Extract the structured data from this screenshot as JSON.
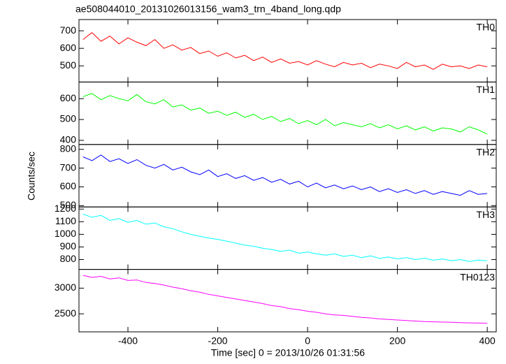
{
  "chart_data": {
    "type": "line",
    "title": "ae508044010_20131026013156_wam3_trn_4band_long.qdp",
    "xlabel": "Time [sec] 0 = 2013/10/26 01:31:56",
    "ylabel": "Counts/sec",
    "xlim": [
      -509,
      420
    ],
    "xticks": [
      -400,
      -200,
      0,
      200,
      400
    ],
    "x": [
      -500,
      -480,
      -460,
      -440,
      -420,
      -400,
      -380,
      -360,
      -340,
      -320,
      -300,
      -280,
      -260,
      -240,
      -220,
      -200,
      -180,
      -160,
      -140,
      -120,
      -100,
      -80,
      -60,
      -40,
      -20,
      0,
      20,
      40,
      60,
      80,
      100,
      120,
      140,
      160,
      180,
      200,
      220,
      240,
      260,
      280,
      300,
      320,
      340,
      360,
      380,
      400
    ],
    "series": [
      {
        "name": "TH0",
        "color": "#ff0000",
        "ylim": [
          408,
          764
        ],
        "yticks": [
          500,
          600,
          700
        ],
        "values": [
          650,
          690,
          640,
          670,
          625,
          660,
          635,
          615,
          650,
          600,
          620,
          590,
          605,
          570,
          585,
          555,
          575,
          545,
          560,
          530,
          550,
          520,
          540,
          515,
          525,
          505,
          530,
          510,
          495,
          520,
          505,
          515,
          490,
          510,
          500,
          485,
          520,
          495,
          505,
          480,
          510,
          495,
          500,
          485,
          505,
          495
        ]
      },
      {
        "name": "TH1",
        "color": "#00ff00",
        "ylim": [
          380,
          680
        ],
        "yticks": [
          400,
          500,
          600
        ],
        "values": [
          610,
          625,
          595,
          615,
          600,
          590,
          620,
          585,
          575,
          595,
          560,
          570,
          545,
          555,
          530,
          540,
          520,
          535,
          510,
          525,
          500,
          515,
          490,
          505,
          480,
          495,
          475,
          500,
          470,
          485,
          475,
          465,
          480,
          460,
          475,
          455,
          470,
          450,
          465,
          445,
          460,
          455,
          440,
          465,
          450,
          430
        ]
      },
      {
        "name": "TH2",
        "color": "#0000ff",
        "ylim": [
          493,
          826
        ],
        "yticks": [
          500,
          600,
          700,
          800
        ],
        "values": [
          760,
          740,
          770,
          735,
          750,
          725,
          745,
          715,
          700,
          720,
          690,
          705,
          680,
          665,
          690,
          655,
          670,
          645,
          660,
          635,
          650,
          625,
          640,
          615,
          630,
          600,
          620,
          595,
          610,
          590,
          605,
          585,
          600,
          575,
          590,
          570,
          585,
          565,
          580,
          560,
          575,
          565,
          555,
          580,
          560,
          565
        ]
      },
      {
        "name": "TH3",
        "color": "#00ffff",
        "ylim": [
          722,
          1217
        ],
        "yticks": [
          800,
          900,
          1000,
          1100,
          1200
        ],
        "values": [
          1160,
          1135,
          1150,
          1110,
          1125,
          1095,
          1110,
          1080,
          1090,
          1060,
          1045,
          1020,
          1000,
          985,
          970,
          960,
          945,
          930,
          915,
          905,
          890,
          880,
          865,
          875,
          850,
          860,
          845,
          835,
          845,
          825,
          835,
          815,
          830,
          810,
          820,
          805,
          815,
          800,
          810,
          795,
          805,
          790,
          800,
          785,
          795,
          790
        ]
      },
      {
        "name": "TH0123",
        "color": "#ff00ff",
        "ylim": [
          2149,
          3365
        ],
        "yticks": [
          2500,
          3000
        ],
        "values": [
          3250,
          3210,
          3230,
          3180,
          3200,
          3150,
          3160,
          3110,
          3090,
          3060,
          3020,
          2990,
          2950,
          2920,
          2880,
          2850,
          2820,
          2790,
          2760,
          2730,
          2700,
          2660,
          2640,
          2600,
          2580,
          2550,
          2530,
          2500,
          2480,
          2470,
          2450,
          2430,
          2420,
          2400,
          2390,
          2380,
          2370,
          2360,
          2350,
          2345,
          2340,
          2335,
          2330,
          2325,
          2320,
          2315
        ]
      }
    ]
  }
}
